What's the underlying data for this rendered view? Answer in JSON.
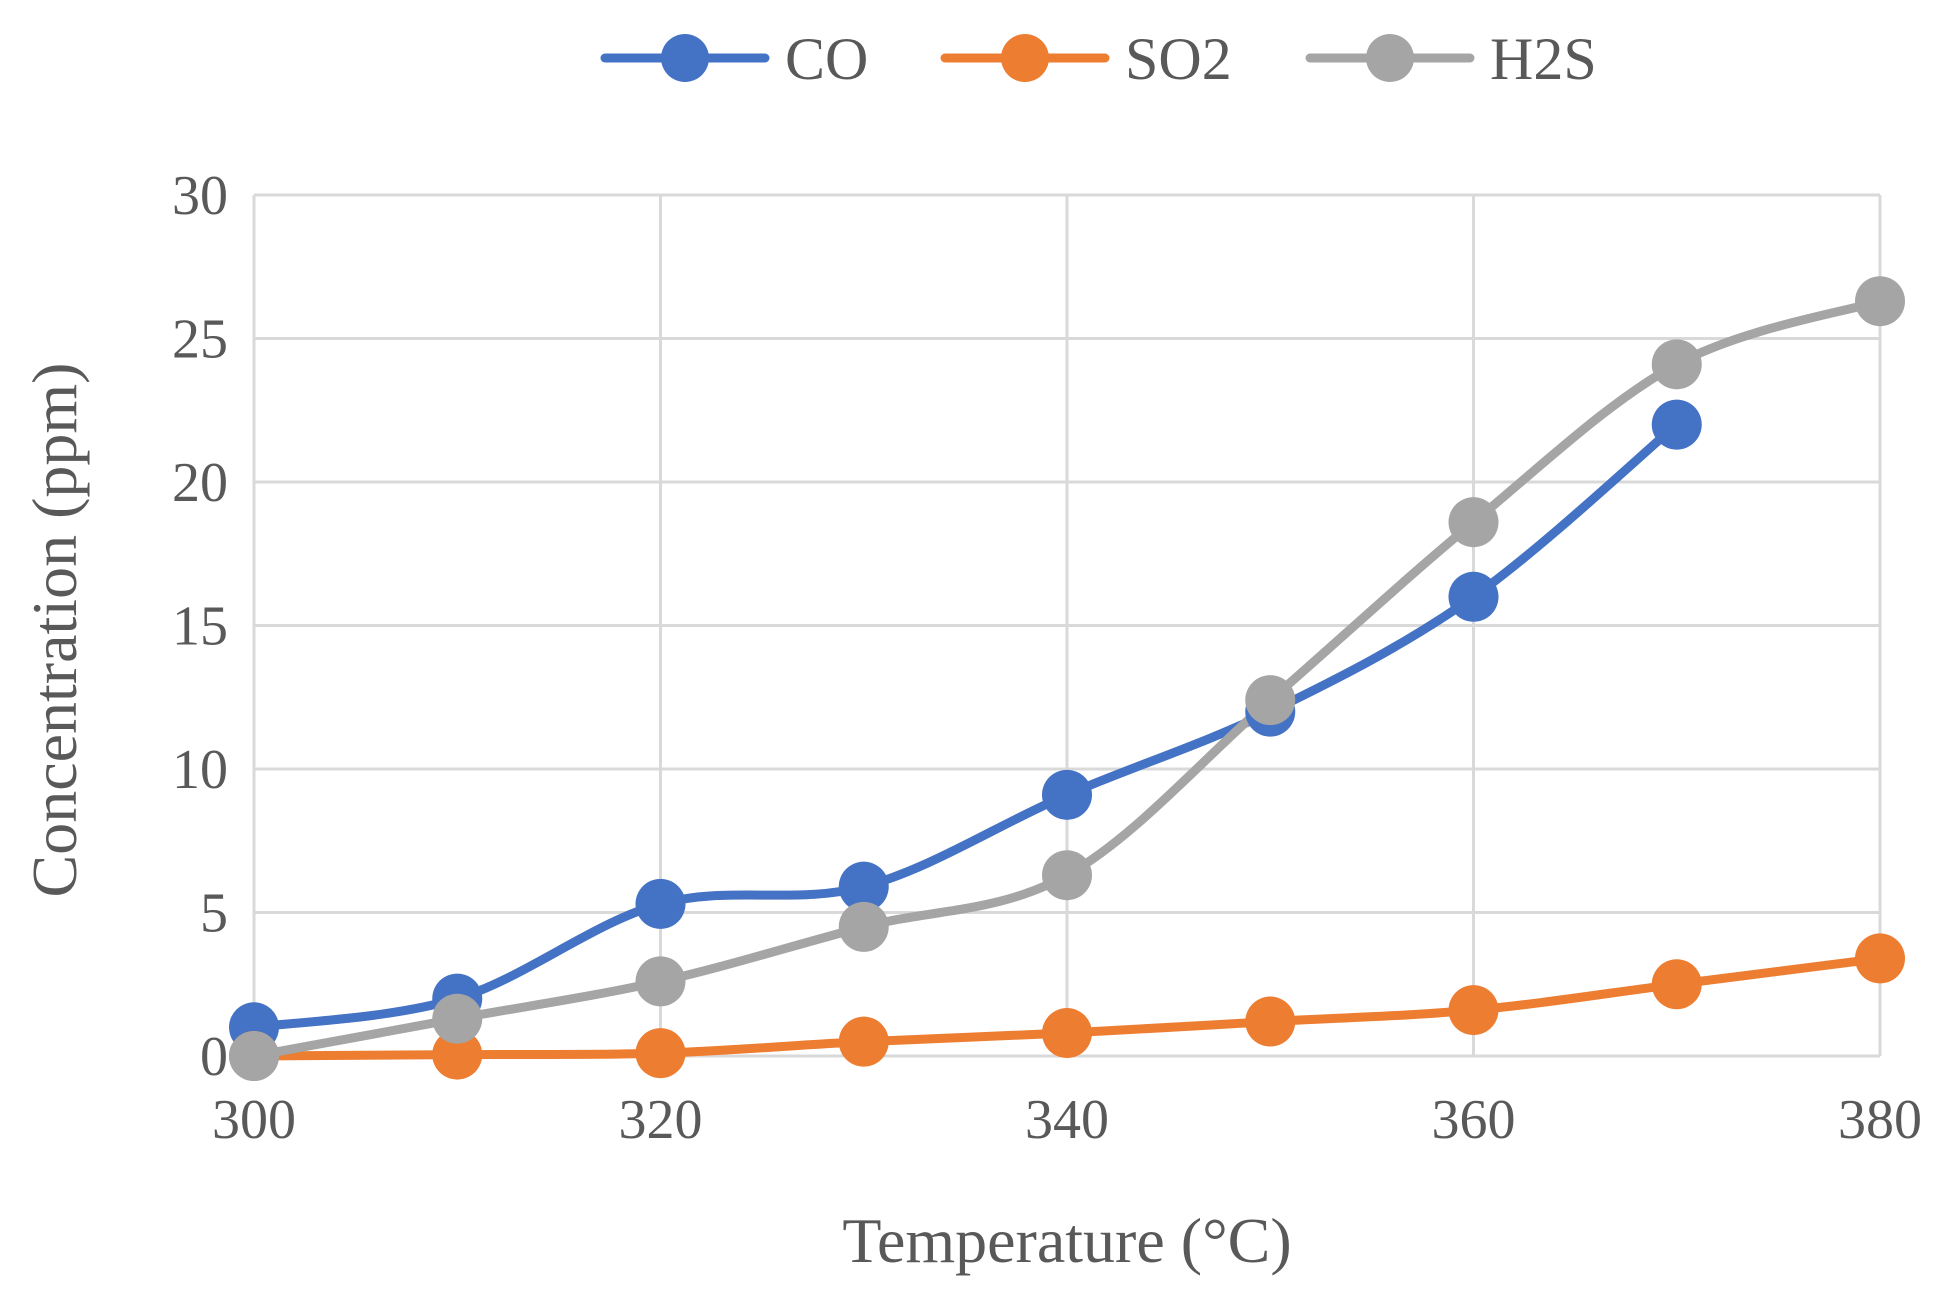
{
  "chart_data": {
    "type": "line",
    "title": "",
    "xlabel": "Temperature (°C)",
    "ylabel": "Concentration (ppm)",
    "xlim": [
      300,
      380
    ],
    "ylim": [
      0,
      30
    ],
    "x_ticks": [
      "300",
      "320",
      "340",
      "360",
      "380"
    ],
    "y_ticks": [
      "0",
      "5",
      "10",
      "15",
      "20",
      "25",
      "30"
    ],
    "grid": true,
    "legend_position": "top",
    "smooth": true,
    "series": [
      {
        "name": "CO",
        "color": "#4472C4",
        "x": [
          300,
          310,
          320,
          330,
          340,
          350,
          360,
          370
        ],
        "values": [
          1.0,
          2.0,
          5.3,
          5.9,
          9.1,
          12.0,
          16.0,
          22.0
        ]
      },
      {
        "name": "SO2",
        "color": "#ED7D31",
        "x": [
          300,
          310,
          320,
          330,
          340,
          350,
          360,
          370,
          380
        ],
        "values": [
          0.0,
          0.05,
          0.1,
          0.5,
          0.8,
          1.2,
          1.6,
          2.5,
          3.4
        ]
      },
      {
        "name": "H2S",
        "color": "#A5A5A5",
        "x": [
          300,
          310,
          320,
          330,
          340,
          350,
          360,
          370,
          380
        ],
        "values": [
          0.0,
          1.3,
          2.6,
          4.5,
          6.3,
          12.4,
          18.6,
          24.1,
          26.3
        ]
      }
    ]
  }
}
